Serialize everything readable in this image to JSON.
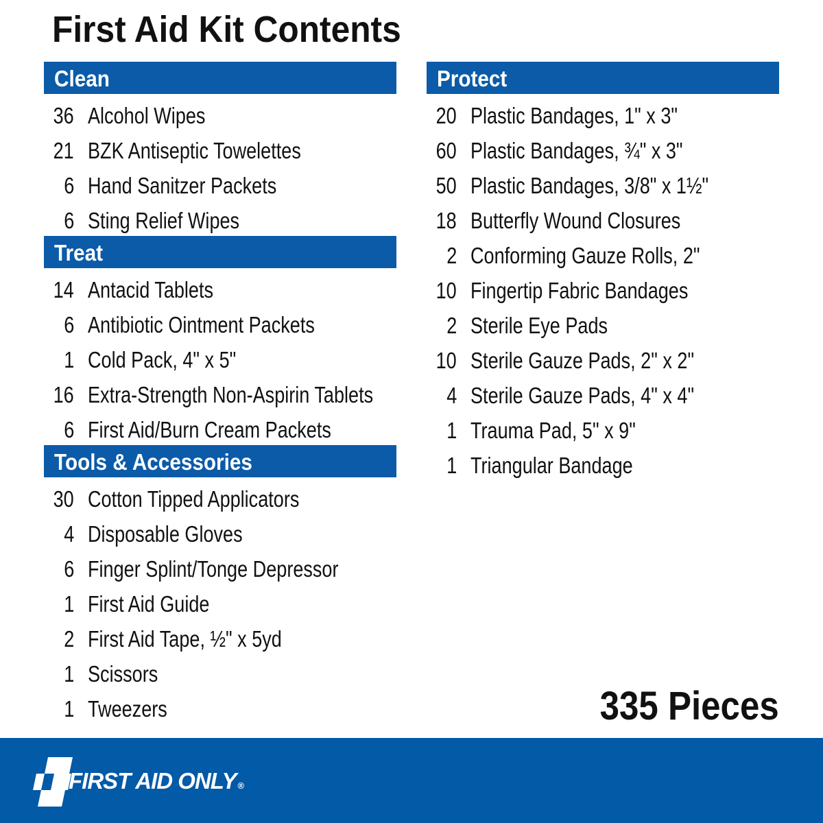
{
  "title": "First Aid Kit Contents",
  "left_sections": [
    {
      "name": "Clean",
      "items": [
        {
          "qty": "36",
          "name": "Alcohol Wipes"
        },
        {
          "qty": "21",
          "name": "BZK Antiseptic Towelettes"
        },
        {
          "qty": "6",
          "name": "Hand Sanitzer Packets"
        },
        {
          "qty": "6",
          "name": "Sting Relief Wipes"
        }
      ]
    },
    {
      "name": "Treat",
      "items": [
        {
          "qty": "14",
          "name": "Antacid Tablets"
        },
        {
          "qty": "6",
          "name": "Antibiotic Ointment Packets"
        },
        {
          "qty": "1",
          "name": "Cold Pack, 4\" x 5\""
        },
        {
          "qty": "16",
          "name": "Extra-Strength Non-Aspirin Tablets"
        },
        {
          "qty": "6",
          "name": "First Aid/Burn Cream Packets"
        }
      ]
    },
    {
      "name": "Tools & Accessories",
      "items": [
        {
          "qty": "30",
          "name": "Cotton Tipped Applicators"
        },
        {
          "qty": "4",
          "name": "Disposable Gloves"
        },
        {
          "qty": "6",
          "name": "Finger Splint/Tonge Depressor"
        },
        {
          "qty": "1",
          "name": "First Aid Guide"
        },
        {
          "qty": "2",
          "name": "First Aid Tape, ½\" x 5yd"
        },
        {
          "qty": "1",
          "name": "Scissors"
        },
        {
          "qty": "1",
          "name": "Tweezers"
        }
      ]
    }
  ],
  "right_sections": [
    {
      "name": "Protect",
      "items": [
        {
          "qty": "20",
          "name": "Plastic Bandages, 1\" x 3\""
        },
        {
          "qty": "60",
          "name": "Plastic Bandages, ¾\" x 3\""
        },
        {
          "qty": "50",
          "name": "Plastic Bandages, 3/8\" x 1½\""
        },
        {
          "qty": "18",
          "name": "Butterfly Wound Closures"
        },
        {
          "qty": "2",
          "name": "Conforming Gauze Rolls, 2\""
        },
        {
          "qty": "10",
          "name": "Fingertip Fabric Bandages"
        },
        {
          "qty": "2",
          "name": "Sterile Eye Pads"
        },
        {
          "qty": "10",
          "name": "Sterile Gauze Pads, 2\" x 2\""
        },
        {
          "qty": "4",
          "name": "Sterile Gauze Pads, 4\" x 4\""
        },
        {
          "qty": "1",
          "name": "Trauma Pad, 5\" x 9\""
        },
        {
          "qty": "1",
          "name": "Triangular Bandage"
        }
      ]
    }
  ],
  "total": "335 Pieces",
  "brand": {
    "name": "FIRST AID ONLY",
    "registered": "®",
    "icon": "checkered-cross-icon"
  },
  "colors": {
    "header_blue": "#0b5ba8",
    "footer_blue": "#035aa6"
  }
}
